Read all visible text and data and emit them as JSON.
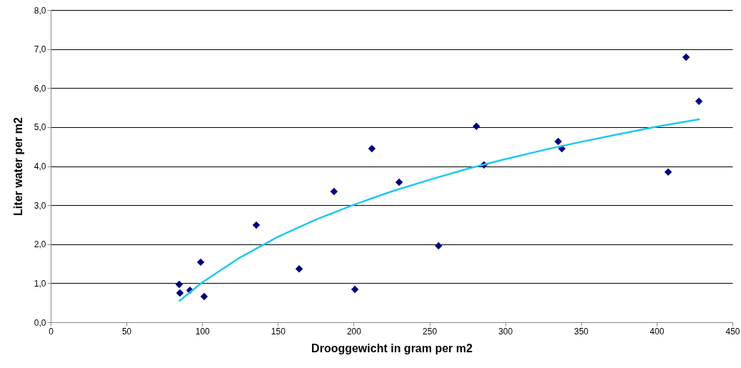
{
  "chart_data": {
    "type": "scatter",
    "xlabel": "Drooggewicht in gram per m2",
    "ylabel": "Liter water per m2",
    "grid": "y",
    "xlim": [
      0,
      450
    ],
    "xticks": [
      0,
      50,
      100,
      150,
      200,
      250,
      300,
      350,
      400,
      450
    ],
    "ylim": [
      0,
      8
    ],
    "yticks": [
      {
        "value": 0,
        "label": "0,0"
      },
      {
        "value": 1,
        "label": "1,0"
      },
      {
        "value": 2,
        "label": "2,0"
      },
      {
        "value": 3,
        "label": "3,0"
      },
      {
        "value": 4,
        "label": "4,0"
      },
      {
        "value": 5,
        "label": "5,0"
      },
      {
        "value": 6,
        "label": "6,0"
      },
      {
        "value": 7,
        "label": "7,0"
      },
      {
        "value": 8,
        "label": "8,0"
      }
    ],
    "series": [
      {
        "marker": "diamond",
        "color": "#000080",
        "x": [
          84.8,
          85.3,
          91.9,
          99,
          101.3,
          135.7,
          164,
          187,
          200.8,
          212,
          230,
          256,
          281,
          286,
          335,
          337.4,
          407.6,
          419.4,
          427.9
        ],
        "values": [
          0.97,
          0.75,
          0.82,
          1.54,
          0.66,
          2.49,
          1.37,
          3.35,
          0.84,
          4.45,
          3.59,
          1.96,
          5.02,
          4.03,
          4.63,
          4.45,
          3.85,
          6.79,
          5.66
        ]
      },
      {
        "type": "line",
        "marker": "none",
        "color": "#1ec8f0",
        "line_style": "solid",
        "x": [
          85,
          100,
          125,
          150,
          175,
          200,
          225,
          250,
          275,
          300,
          325,
          350,
          375,
          400,
          428
        ],
        "values": [
          0.55,
          1.02,
          1.66,
          2.19,
          2.63,
          3.01,
          3.35,
          3.65,
          3.93,
          4.18,
          4.41,
          4.62,
          4.82,
          5.01,
          5.2
        ]
      }
    ]
  }
}
